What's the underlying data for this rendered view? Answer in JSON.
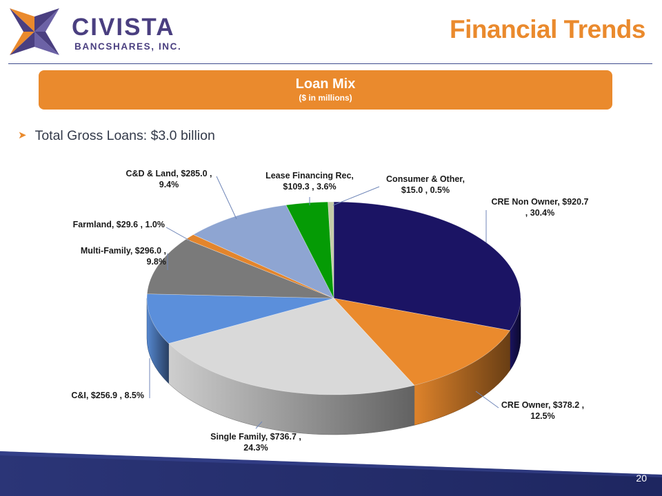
{
  "header": {
    "logo_name": "CIVISTA",
    "logo_sub": "BANCSHARES, INC.",
    "page_title": "Financial Trends"
  },
  "banner": {
    "title": "Loan Mix",
    "subtitle": "($ in millions)"
  },
  "bullet": {
    "text": "Total Gross Loans: $3.0 billion"
  },
  "footer": {
    "page_number": "20"
  },
  "colors": {
    "brand_orange": "#EA8A2D",
    "brand_navy": "#1B1464",
    "rule": "#3D4A8C"
  },
  "chart_data": {
    "type": "pie",
    "title": "Loan Mix",
    "subtitle": "($ in millions)",
    "units": "$ in millions",
    "slices": [
      {
        "name": "CRE Non Owner",
        "value": 920.7,
        "percent": 30.4,
        "color": "#1B1464",
        "label_line1": "CRE Non Owner, $920.7",
        "label_line2": ", 30.4%"
      },
      {
        "name": "CRE Owner",
        "value": 378.2,
        "percent": 12.5,
        "color": "#EA8A2D",
        "label_line1": "CRE Owner, $378.2 ,",
        "label_line2": "12.5%"
      },
      {
        "name": "Single Family",
        "value": 736.7,
        "percent": 24.3,
        "color": "#D9D9D9",
        "label_line1": "Single Family, $736.7 ,",
        "label_line2": "24.3%"
      },
      {
        "name": "C&I",
        "value": 256.9,
        "percent": 8.5,
        "color": "#5B8FDB",
        "label_line1": "C&I, $256.9 , 8.5%",
        "label_line2": ""
      },
      {
        "name": "Multi-Family",
        "value": 296.0,
        "percent": 9.8,
        "color": "#7A7A7A",
        "label_line1": "Multi-Family, $296.0 ,",
        "label_line2": "9.8%"
      },
      {
        "name": "Farmland",
        "value": 29.6,
        "percent": 1.0,
        "color": "#E3852C",
        "label_line1": "Farmland, $29.6 , 1.0%",
        "label_line2": ""
      },
      {
        "name": "C&D & Land",
        "value": 285.0,
        "percent": 9.4,
        "color": "#8EA5D2",
        "label_line1": "C&D & Land, $285.0 ,",
        "label_line2": "9.4%"
      },
      {
        "name": "Lease Financing Rec",
        "value": 109.3,
        "percent": 3.6,
        "color": "#059B05",
        "label_line1": "Lease Financing Rec,",
        "label_line2": "$109.3 , 3.6%"
      },
      {
        "name": "Consumer & Other",
        "value": 15.0,
        "percent": 0.5,
        "color": "#C5CCA8",
        "label_line1": "Consumer & Other,",
        "label_line2": "$15.0 , 0.5%"
      }
    ]
  }
}
